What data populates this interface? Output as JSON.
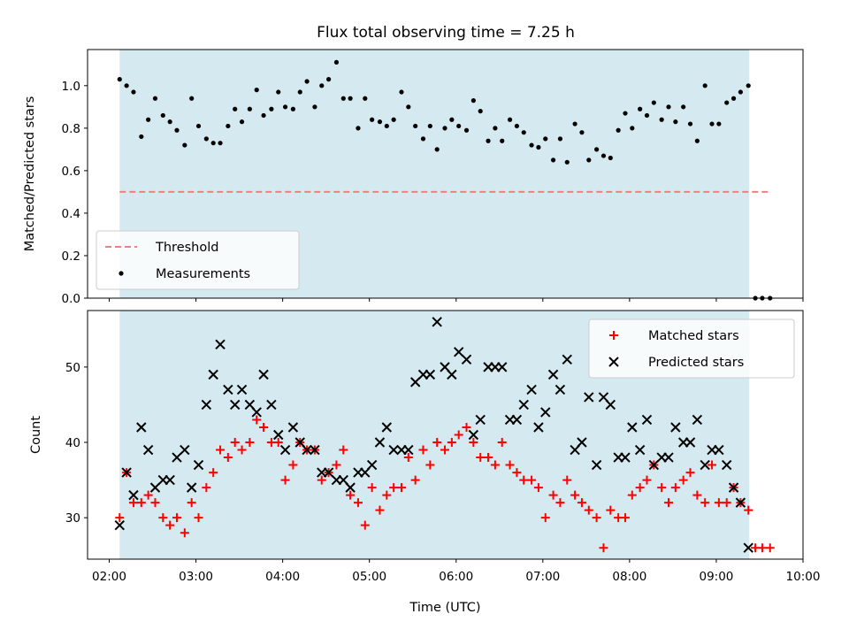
{
  "title": "Flux total observing time = 7.25 h",
  "chart_data": [
    {
      "type": "scatter",
      "ylabel": "Matched/Predicted stars",
      "ylim": [
        0,
        1.17
      ],
      "yticks": [
        0.0,
        0.2,
        0.4,
        0.6,
        0.8,
        1.0
      ],
      "ytick_labels": [
        "0.0",
        "0.2",
        "0.4",
        "0.6",
        "0.8",
        "1.0"
      ],
      "xlim": [
        1.75,
        10.0
      ],
      "shaded_region": {
        "from": 2.12,
        "to": 9.38,
        "color": "#d4eaf0"
      },
      "legend": {
        "placement": "lower-left",
        "entries": [
          "Threshold",
          "Measurements"
        ]
      },
      "series": [
        {
          "name": "Threshold",
          "style": "dashed-line",
          "color": "#f08080",
          "x": [
            2.12,
            9.62
          ],
          "y": [
            0.5,
            0.5
          ]
        },
        {
          "name": "Measurements",
          "style": "dot",
          "color": "#000000",
          "x": [
            2.12,
            2.2,
            2.28,
            2.37,
            2.45,
            2.53,
            2.62,
            2.7,
            2.78,
            2.87,
            2.95,
            3.03,
            3.12,
            3.2,
            3.28,
            3.37,
            3.45,
            3.53,
            3.62,
            3.7,
            3.78,
            3.87,
            3.95,
            4.03,
            4.12,
            4.2,
            4.28,
            4.37,
            4.45,
            4.53,
            4.62,
            4.7,
            4.78,
            4.87,
            4.95,
            5.03,
            5.12,
            5.2,
            5.28,
            5.37,
            5.45,
            5.53,
            5.62,
            5.7,
            5.78,
            5.87,
            5.95,
            6.03,
            6.12,
            6.2,
            6.28,
            6.37,
            6.45,
            6.53,
            6.62,
            6.7,
            6.78,
            6.87,
            6.95,
            7.03,
            7.12,
            7.2,
            7.28,
            7.37,
            7.45,
            7.53,
            7.62,
            7.7,
            7.78,
            7.87,
            7.95,
            8.03,
            8.12,
            8.2,
            8.28,
            8.37,
            8.45,
            8.53,
            8.62,
            8.7,
            8.78,
            8.87,
            8.95,
            9.03,
            9.12,
            9.2,
            9.28,
            9.37,
            9.45,
            9.53,
            9.62
          ],
          "y": [
            1.03,
            1.0,
            0.97,
            0.76,
            0.84,
            0.94,
            0.86,
            0.83,
            0.79,
            0.72,
            0.94,
            0.81,
            0.75,
            0.73,
            0.73,
            0.81,
            0.89,
            0.83,
            0.89,
            0.98,
            0.86,
            0.89,
            0.97,
            0.9,
            0.89,
            0.97,
            1.02,
            0.9,
            1.0,
            1.03,
            1.11,
            0.94,
            0.94,
            0.8,
            0.94,
            0.84,
            0.83,
            0.81,
            0.84,
            0.97,
            0.9,
            0.81,
            0.75,
            0.81,
            0.7,
            0.8,
            0.84,
            0.81,
            0.79,
            0.93,
            0.88,
            0.74,
            0.8,
            0.74,
            0.84,
            0.81,
            0.78,
            0.72,
            0.71,
            0.75,
            0.65,
            0.75,
            0.64,
            0.82,
            0.78,
            0.65,
            0.7,
            0.67,
            0.66,
            0.79,
            0.87,
            0.8,
            0.89,
            0.86,
            0.92,
            0.84,
            0.9,
            0.83,
            0.9,
            0.82,
            0.74,
            1.0,
            0.82,
            0.82,
            0.92,
            0.94,
            0.97,
            1.0,
            0.0,
            0.0,
            0.0
          ]
        }
      ]
    },
    {
      "type": "scatter",
      "xlabel": "Time (UTC)",
      "ylabel": "Count",
      "ylim": [
        24.5,
        57.5
      ],
      "yticks": [
        30,
        40,
        50
      ],
      "ytick_labels": [
        "30",
        "40",
        "50"
      ],
      "xlim": [
        1.75,
        10.0
      ],
      "xticks": [
        2,
        3,
        4,
        5,
        6,
        7,
        8,
        9,
        10
      ],
      "xtick_labels": [
        "02:00",
        "03:00",
        "04:00",
        "05:00",
        "06:00",
        "07:00",
        "08:00",
        "09:00",
        "10:00"
      ],
      "shaded_region": {
        "from": 2.12,
        "to": 9.38,
        "color": "#d4eaf0"
      },
      "legend": {
        "placement": "upper-right",
        "entries": [
          "Matched stars",
          "Predicted stars"
        ]
      },
      "series": [
        {
          "name": "Matched stars",
          "marker": "plus",
          "color": "#ff0000",
          "x": [
            2.12,
            2.2,
            2.28,
            2.37,
            2.45,
            2.53,
            2.62,
            2.7,
            2.78,
            2.87,
            2.95,
            3.03,
            3.12,
            3.2,
            3.28,
            3.37,
            3.45,
            3.53,
            3.62,
            3.7,
            3.78,
            3.87,
            3.95,
            4.03,
            4.12,
            4.2,
            4.28,
            4.37,
            4.45,
            4.53,
            4.62,
            4.7,
            4.78,
            4.87,
            4.95,
            5.03,
            5.12,
            5.2,
            5.28,
            5.37,
            5.45,
            5.53,
            5.62,
            5.7,
            5.78,
            5.87,
            5.95,
            6.03,
            6.12,
            6.2,
            6.28,
            6.37,
            6.45,
            6.53,
            6.62,
            6.7,
            6.78,
            6.87,
            6.95,
            7.03,
            7.12,
            7.2,
            7.28,
            7.37,
            7.45,
            7.53,
            7.62,
            7.7,
            7.78,
            7.87,
            7.95,
            8.03,
            8.12,
            8.2,
            8.28,
            8.37,
            8.45,
            8.53,
            8.62,
            8.7,
            8.78,
            8.87,
            8.95,
            9.03,
            9.12,
            9.2,
            9.28,
            9.37,
            9.45,
            9.53,
            9.62
          ],
          "y": [
            30,
            36,
            32,
            32,
            33,
            32,
            30,
            29,
            30,
            28,
            32,
            30,
            34,
            36,
            39,
            38,
            40,
            39,
            40,
            43,
            42,
            40,
            40,
            35,
            37,
            40,
            39,
            39,
            35,
            36,
            37,
            39,
            33,
            32,
            29,
            34,
            31,
            33,
            34,
            34,
            38,
            35,
            39,
            37,
            40,
            39,
            40,
            41,
            42,
            40,
            38,
            38,
            37,
            40,
            37,
            36,
            35,
            35,
            34,
            30,
            33,
            32,
            35,
            33,
            32,
            31,
            30,
            26,
            31,
            30,
            30,
            33,
            34,
            35,
            37,
            34,
            32,
            34,
            35,
            36,
            33,
            32,
            37,
            32,
            32,
            34,
            32,
            31,
            26,
            26,
            26
          ]
        },
        {
          "name": "Predicted stars",
          "marker": "x",
          "color": "#000000",
          "x": [
            2.12,
            2.2,
            2.28,
            2.37,
            2.45,
            2.53,
            2.62,
            2.7,
            2.78,
            2.87,
            2.95,
            3.03,
            3.12,
            3.2,
            3.28,
            3.37,
            3.45,
            3.53,
            3.62,
            3.7,
            3.78,
            3.87,
            3.95,
            4.03,
            4.12,
            4.2,
            4.28,
            4.37,
            4.45,
            4.53,
            4.62,
            4.7,
            4.78,
            4.87,
            4.95,
            5.03,
            5.12,
            5.2,
            5.28,
            5.37,
            5.45,
            5.53,
            5.62,
            5.7,
            5.78,
            5.87,
            5.95,
            6.03,
            6.12,
            6.2,
            6.28,
            6.37,
            6.45,
            6.53,
            6.62,
            6.7,
            6.78,
            6.87,
            6.95,
            7.03,
            7.12,
            7.2,
            7.28,
            7.37,
            7.45,
            7.53,
            7.62,
            7.7,
            7.78,
            7.87,
            7.95,
            8.03,
            8.12,
            8.2,
            8.28,
            8.37,
            8.45,
            8.53,
            8.62,
            8.7,
            8.78,
            8.87,
            8.95,
            9.03,
            9.12,
            9.2,
            9.28,
            9.37
          ],
          "y": [
            29,
            36,
            33,
            42,
            39,
            34,
            35,
            35,
            38,
            39,
            34,
            37,
            45,
            49,
            53,
            47,
            45,
            47,
            45,
            44,
            49,
            45,
            41,
            39,
            42,
            40,
            39,
            39,
            36,
            36,
            35,
            35,
            34,
            36,
            36,
            37,
            40,
            42,
            39,
            39,
            39,
            48,
            49,
            49,
            56,
            50,
            49,
            52,
            51,
            41,
            43,
            50,
            50,
            50,
            43,
            43,
            45,
            47,
            42,
            44,
            49,
            47,
            51,
            39,
            40,
            46,
            37,
            46,
            45,
            38,
            38,
            42,
            39,
            43,
            37,
            38,
            38,
            42,
            40,
            40,
            43,
            37,
            39,
            39,
            37,
            34,
            32,
            26
          ]
        }
      ]
    }
  ]
}
